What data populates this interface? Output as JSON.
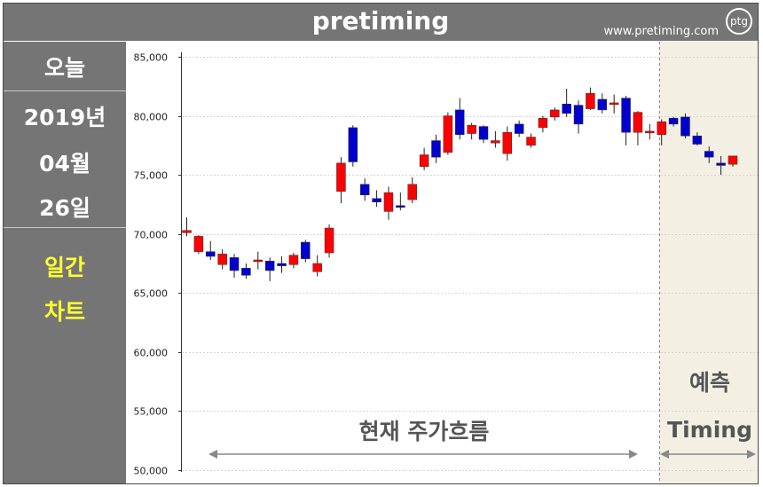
{
  "header": {
    "title": "pretiming",
    "site": "www.pretiming.com",
    "logo": "ptg"
  },
  "sidebar": {
    "today_label": "오늘",
    "year": "2019년",
    "month": "04월",
    "day": "26일",
    "chart_kind_1": "일간",
    "chart_kind_2": "차트"
  },
  "colors": {
    "up": "#ff0000",
    "down": "#0000cc",
    "panel": "#757575",
    "highlight": "#ffff33"
  },
  "chart_data": {
    "type": "candlestick",
    "ylim": [
      50000,
      85000
    ],
    "yticks": [
      "50,000",
      "55,000",
      "60,000",
      "65,000",
      "70,000",
      "75,000",
      "80,000",
      "85,000"
    ],
    "ytick_values": [
      50000,
      55000,
      60000,
      65000,
      70000,
      75000,
      80000,
      85000
    ],
    "grid": true,
    "annotations": {
      "current": "현재 주가흐름",
      "forecast_1": "예측",
      "forecast_2": "Timing"
    },
    "history": [
      {
        "o": 70100,
        "h": 71400,
        "l": 69800,
        "c": 70300
      },
      {
        "o": 68500,
        "h": 69900,
        "l": 68300,
        "c": 69800
      },
      {
        "o": 68500,
        "h": 69400,
        "l": 67800,
        "c": 68100
      },
      {
        "o": 67400,
        "h": 68700,
        "l": 67000,
        "c": 68300
      },
      {
        "o": 68000,
        "h": 68300,
        "l": 66300,
        "c": 66900
      },
      {
        "o": 67100,
        "h": 67500,
        "l": 66200,
        "c": 66500
      },
      {
        "o": 67700,
        "h": 68500,
        "l": 67000,
        "c": 67800
      },
      {
        "o": 67700,
        "h": 68000,
        "l": 66000,
        "c": 66900
      },
      {
        "o": 67500,
        "h": 68100,
        "l": 66700,
        "c": 67300
      },
      {
        "o": 67400,
        "h": 68400,
        "l": 67100,
        "c": 68200
      },
      {
        "o": 69300,
        "h": 69500,
        "l": 67600,
        "c": 67900
      },
      {
        "o": 66800,
        "h": 68200,
        "l": 66400,
        "c": 67500
      },
      {
        "o": 68400,
        "h": 70800,
        "l": 68000,
        "c": 70500
      },
      {
        "o": 73600,
        "h": 76500,
        "l": 72600,
        "c": 76000
      },
      {
        "o": 79000,
        "h": 79200,
        "l": 75700,
        "c": 76100
      },
      {
        "o": 74200,
        "h": 74700,
        "l": 72800,
        "c": 73300
      },
      {
        "o": 73000,
        "h": 73700,
        "l": 72300,
        "c": 72700
      },
      {
        "o": 71900,
        "h": 74000,
        "l": 71200,
        "c": 73500
      },
      {
        "o": 72400,
        "h": 73500,
        "l": 72000,
        "c": 72300
      },
      {
        "o": 72900,
        "h": 74800,
        "l": 72600,
        "c": 74200
      },
      {
        "o": 75700,
        "h": 77300,
        "l": 75400,
        "c": 76700
      },
      {
        "o": 77900,
        "h": 78400,
        "l": 76000,
        "c": 76500
      },
      {
        "o": 76900,
        "h": 80300,
        "l": 76700,
        "c": 80000
      },
      {
        "o": 80500,
        "h": 81500,
        "l": 78000,
        "c": 78400
      },
      {
        "o": 78500,
        "h": 79400,
        "l": 78000,
        "c": 79200
      },
      {
        "o": 79100,
        "h": 79200,
        "l": 77700,
        "c": 78000
      },
      {
        "o": 77700,
        "h": 78700,
        "l": 77300,
        "c": 77900
      },
      {
        "o": 76800,
        "h": 79100,
        "l": 76200,
        "c": 78600
      },
      {
        "o": 79300,
        "h": 79600,
        "l": 78200,
        "c": 78500
      },
      {
        "o": 77500,
        "h": 78500,
        "l": 77300,
        "c": 78200
      },
      {
        "o": 79000,
        "h": 80000,
        "l": 78600,
        "c": 79800
      },
      {
        "o": 79900,
        "h": 80700,
        "l": 79600,
        "c": 80500
      },
      {
        "o": 81000,
        "h": 82300,
        "l": 79900,
        "c": 80200
      },
      {
        "o": 80900,
        "h": 81300,
        "l": 78500,
        "c": 79300
      },
      {
        "o": 80600,
        "h": 82400,
        "l": 80500,
        "c": 81900
      },
      {
        "o": 81400,
        "h": 81900,
        "l": 80200,
        "c": 80500
      },
      {
        "o": 81000,
        "h": 81800,
        "l": 80200,
        "c": 81100
      },
      {
        "o": 81500,
        "h": 81700,
        "l": 77500,
        "c": 78600
      },
      {
        "o": 78600,
        "h": 80400,
        "l": 77500,
        "c": 80300
      },
      {
        "o": 78600,
        "h": 79300,
        "l": 78000,
        "c": 78700
      }
    ],
    "forecast": [
      {
        "o": 78400,
        "h": 79700,
        "l": 77500,
        "c": 79500
      },
      {
        "o": 79800,
        "h": 79900,
        "l": 79100,
        "c": 79300
      },
      {
        "o": 79900,
        "h": 80200,
        "l": 78100,
        "c": 78300
      },
      {
        "o": 78300,
        "h": 78600,
        "l": 77500,
        "c": 77600
      },
      {
        "o": 77000,
        "h": 77400,
        "l": 76000,
        "c": 76500
      },
      {
        "o": 76000,
        "h": 76600,
        "l": 75000,
        "c": 75800
      },
      {
        "o": 75900,
        "h": 76600,
        "l": 75700,
        "c": 76600
      }
    ]
  }
}
